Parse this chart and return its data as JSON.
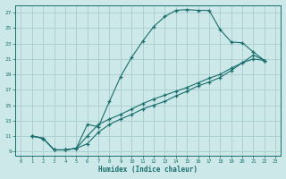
{
  "xlabel": "Humidex (Indice chaleur)",
  "bg_color": "#cce8e8",
  "grid_color": "#aacccc",
  "line_color": "#1a6e6e",
  "xlim": [
    -0.5,
    23.5
  ],
  "ylim": [
    8.5,
    28
  ],
  "xticks": [
    0,
    1,
    2,
    3,
    4,
    5,
    6,
    7,
    8,
    9,
    10,
    11,
    12,
    13,
    14,
    15,
    16,
    17,
    18,
    19,
    20,
    21,
    22,
    23
  ],
  "yticks": [
    9,
    11,
    13,
    15,
    17,
    19,
    21,
    23,
    25,
    27
  ],
  "curve1_x": [
    1,
    2,
    3,
    4,
    5,
    6,
    7,
    8,
    9,
    10,
    11,
    12,
    13,
    14,
    15,
    16,
    17,
    18,
    19,
    20,
    21,
    22
  ],
  "curve1_y": [
    11,
    10.7,
    9.2,
    9.2,
    9.4,
    12.5,
    12.2,
    15.5,
    18.7,
    21.2,
    23.3,
    25.2,
    26.5,
    27.3,
    27.4,
    27.3,
    27.3,
    24.8,
    23.2,
    23.1,
    21.9,
    20.8
  ],
  "curve2_x": [
    1,
    2,
    3,
    4,
    5,
    6,
    7,
    8,
    9,
    10,
    11,
    12,
    13,
    14,
    15,
    16,
    17,
    18,
    19,
    20,
    21,
    22
  ],
  "curve2_y": [
    11,
    10.7,
    9.2,
    9.2,
    9.4,
    11.0,
    12.5,
    13.2,
    13.8,
    14.5,
    15.2,
    15.8,
    16.3,
    16.8,
    17.3,
    17.9,
    18.5,
    19.0,
    19.8,
    20.5,
    21.0,
    20.8
  ],
  "curve3_x": [
    1,
    2,
    3,
    4,
    5,
    6,
    7,
    8,
    9,
    10,
    11,
    12,
    13,
    14,
    15,
    16,
    17,
    18,
    19,
    20,
    21,
    22
  ],
  "curve3_y": [
    11,
    10.7,
    9.2,
    9.2,
    9.4,
    10.0,
    11.5,
    12.5,
    13.2,
    13.8,
    14.5,
    15.0,
    15.5,
    16.2,
    16.8,
    17.5,
    18.0,
    18.6,
    19.5,
    20.5,
    21.5,
    20.8
  ]
}
